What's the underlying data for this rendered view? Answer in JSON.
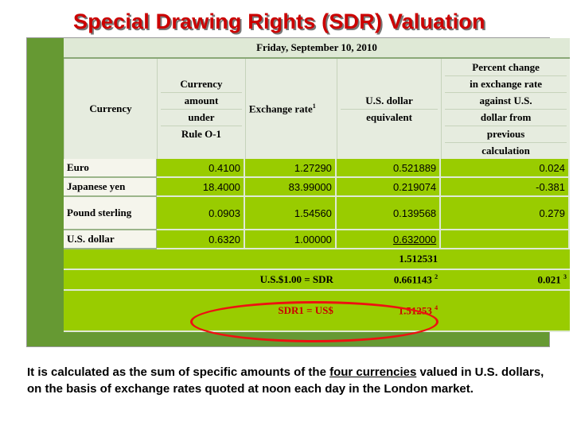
{
  "title": "Special Drawing Rights (SDR) Valuation",
  "table": {
    "date": "Friday, September 10, 2010",
    "headers": {
      "currency": "Currency",
      "amount": [
        "Currency",
        "amount",
        "under",
        "Rule O-1"
      ],
      "rate": "Exchange rate",
      "rate_sup": "1",
      "usd": [
        "U.S. dollar",
        "equivalent"
      ],
      "pct": [
        "Percent change",
        "in exchange rate",
        "against U.S.",
        "dollar from",
        "previous",
        "calculation"
      ]
    },
    "rows": [
      {
        "currency": "Euro",
        "amount": "0.4100",
        "rate": "1.27290",
        "usd": "0.521889",
        "pct": "0.024"
      },
      {
        "currency": "Japanese yen",
        "amount": "18.4000",
        "rate": "83.99000",
        "usd": "0.219074",
        "pct": "-0.381"
      },
      {
        "currency": "Pound sterling",
        "amount": "0.0903",
        "rate": "1.54560",
        "usd": "0.139568",
        "pct": "0.279"
      },
      {
        "currency": "U.S. dollar",
        "amount": "0.6320",
        "rate": "1.00000",
        "usd": "0.632000",
        "pct": ""
      }
    ],
    "total": "1.512531",
    "usd_sdr": {
      "label": "U.S.$1.00 = SDR",
      "value": "0.661143",
      "sup": "2",
      "pct": "0.021",
      "pct_sup": "3"
    },
    "sdr_usd": {
      "label": "SDR1 = US$",
      "value": "1.51253",
      "sup": "4"
    }
  },
  "caption": {
    "before": "It is calculated as the sum of specific amounts of the ",
    "link": "four currencies",
    "after": " valued in U.S. dollars, on the basis of exchange rates quoted at noon each day in the London market."
  },
  "colors": {
    "title": "#cc0000",
    "frame": "#669933",
    "cell": "#99cc00",
    "highlight": "#ee1111"
  }
}
